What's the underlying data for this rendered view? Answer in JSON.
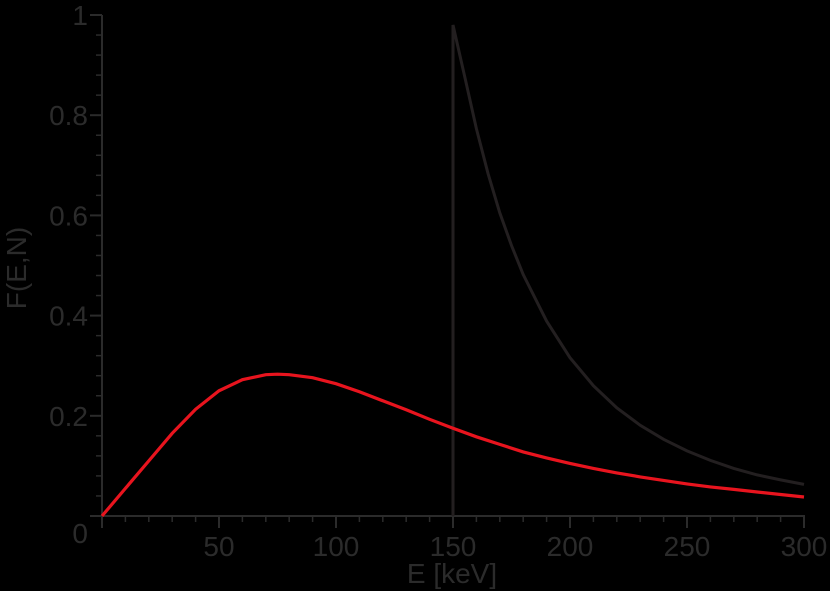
{
  "colors": {
    "background": "#000000",
    "axis": "#2b2b2b",
    "text": "#2b2b2b",
    "series_black": "#231f20",
    "series_red": "#e8141e"
  },
  "chart_data": {
    "type": "line",
    "title": "",
    "xlabel": "E [keV]",
    "ylabel": "F(E,N)",
    "xlim": [
      0,
      300
    ],
    "ylim": [
      0,
      1
    ],
    "grid": false,
    "legend": null,
    "x_ticks": [
      50,
      100,
      150,
      200,
      250,
      300
    ],
    "x_tick_labels": [
      "50",
      "100",
      "150",
      "200",
      "250",
      "300"
    ],
    "x_minor_step": 10,
    "y_ticks": [
      0,
      0.2,
      0.4,
      0.6,
      0.8,
      1
    ],
    "y_tick_labels": [
      "0",
      "0.2",
      "0.4",
      "0.6",
      "0.8",
      "1"
    ],
    "y_minor_step": 0.04,
    "origin_label": "0",
    "series": [
      {
        "name": "red-curve",
        "color": "#e8141e",
        "x": [
          0,
          10,
          20,
          30,
          40,
          50,
          60,
          70,
          75,
          80,
          90,
          100,
          110,
          120,
          130,
          140,
          150,
          160,
          170,
          180,
          190,
          200,
          210,
          220,
          230,
          240,
          250,
          260,
          270,
          280,
          290,
          300
        ],
        "y": [
          0,
          0.055,
          0.11,
          0.165,
          0.213,
          0.25,
          0.272,
          0.282,
          0.283,
          0.282,
          0.276,
          0.264,
          0.248,
          0.23,
          0.212,
          0.193,
          0.175,
          0.158,
          0.143,
          0.128,
          0.116,
          0.105,
          0.095,
          0.086,
          0.078,
          0.071,
          0.064,
          0.058,
          0.053,
          0.048,
          0.043,
          0.038
        ]
      },
      {
        "name": "black-curve",
        "color": "#231f20",
        "x": [
          150,
          150,
          155,
          160,
          165,
          170,
          175,
          180,
          190,
          200,
          210,
          220,
          230,
          240,
          250,
          260,
          270,
          280,
          290,
          300
        ],
        "y": [
          0,
          0.98,
          0.877,
          0.773,
          0.683,
          0.605,
          0.54,
          0.482,
          0.389,
          0.316,
          0.26,
          0.216,
          0.181,
          0.153,
          0.13,
          0.111,
          0.095,
          0.082,
          0.072,
          0.063
        ]
      }
    ]
  }
}
